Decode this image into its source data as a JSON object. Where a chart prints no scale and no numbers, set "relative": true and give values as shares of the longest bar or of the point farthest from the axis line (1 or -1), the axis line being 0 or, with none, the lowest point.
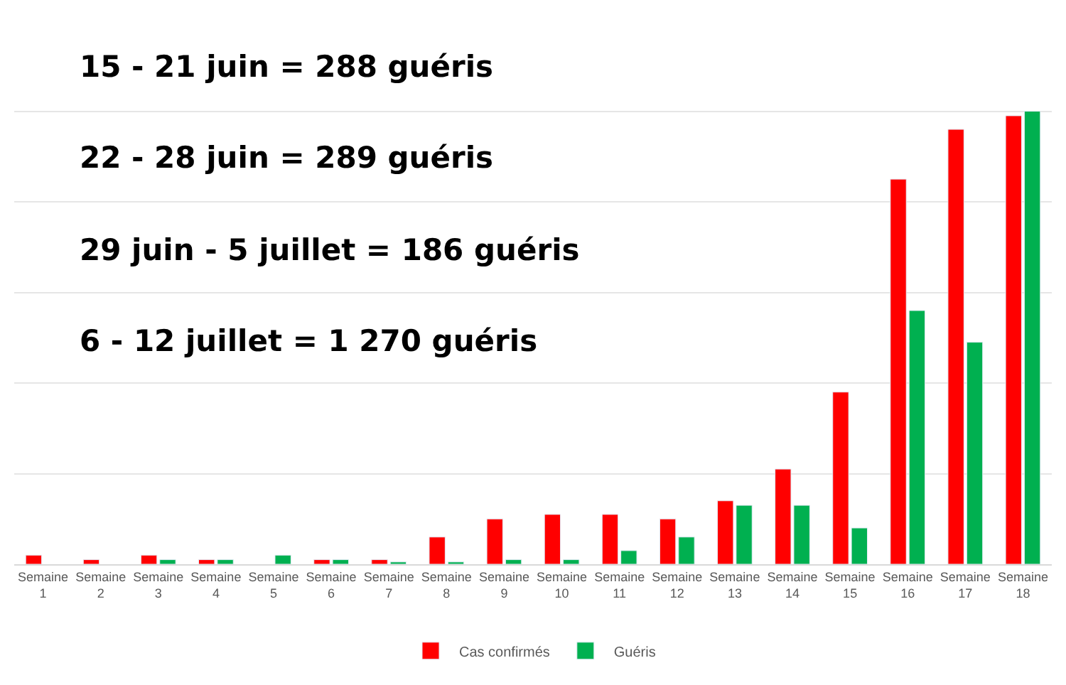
{
  "chart_data": {
    "type": "bar",
    "relative": true,
    "categories": [
      "Semaine 1",
      "Semaine 2",
      "Semaine 3",
      "Semaine 4",
      "Semaine 5",
      "Semaine 6",
      "Semaine 7",
      "Semaine 8",
      "Semaine 9",
      "Semaine 10",
      "Semaine 11",
      "Semaine 12",
      "Semaine 13",
      "Semaine 14",
      "Semaine 15",
      "Semaine 16",
      "Semaine 17",
      "Semaine 18"
    ],
    "series": [
      {
        "name": "Cas confirmés",
        "color": "#ff0000",
        "values": [
          0.02,
          0.01,
          0.02,
          0.01,
          null,
          0.01,
          0.01,
          0.06,
          0.1,
          0.11,
          0.11,
          0.1,
          0.14,
          0.21,
          0.38,
          0.85,
          0.96,
          0.99
        ]
      },
      {
        "name": "Guéris",
        "color": "#00b050",
        "values": [
          null,
          null,
          0.01,
          0.01,
          0.02,
          0.01,
          0.005,
          0.005,
          0.01,
          0.01,
          0.03,
          0.06,
          0.13,
          0.13,
          0.08,
          0.56,
          0.49,
          1
        ]
      }
    ],
    "annotations": [
      "15 - 21 juin = 288 guéris",
      "22 - 28 juin = 289 guéris",
      "29 juin - 5 juillet = 186 guéris",
      "6 - 12 juillet = 1 270 guéris"
    ],
    "grid": "y",
    "legend": "bottom"
  }
}
